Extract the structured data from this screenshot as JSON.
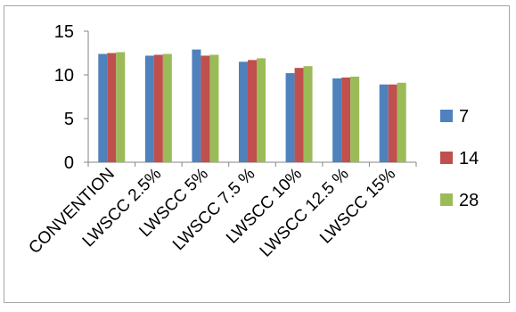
{
  "chart_data": {
    "type": "bar",
    "title": "",
    "xlabel": "",
    "ylabel": "",
    "ylim": [
      0,
      15
    ],
    "y_ticks": [
      0,
      5,
      10,
      15
    ],
    "grid": false,
    "legend_position": "right",
    "categories": [
      "CONVENTION",
      "LWSCC 2.5%",
      "LWSCC 5%",
      "LWSCC 7.5 %",
      "LWSCC 10%",
      "LWSCC 12.5 %",
      "LWSCC 15%"
    ],
    "series": [
      {
        "name": "7",
        "color": "#4f81bd",
        "values": [
          12.4,
          12.2,
          12.9,
          11.5,
          10.2,
          9.6,
          8.9
        ]
      },
      {
        "name": "14",
        "color": "#c0504d",
        "values": [
          12.5,
          12.3,
          12.2,
          11.7,
          10.8,
          9.7,
          8.9
        ]
      },
      {
        "name": "28",
        "color": "#9bbb59",
        "values": [
          12.6,
          12.4,
          12.3,
          11.9,
          11.0,
          9.8,
          9.1
        ]
      }
    ]
  }
}
